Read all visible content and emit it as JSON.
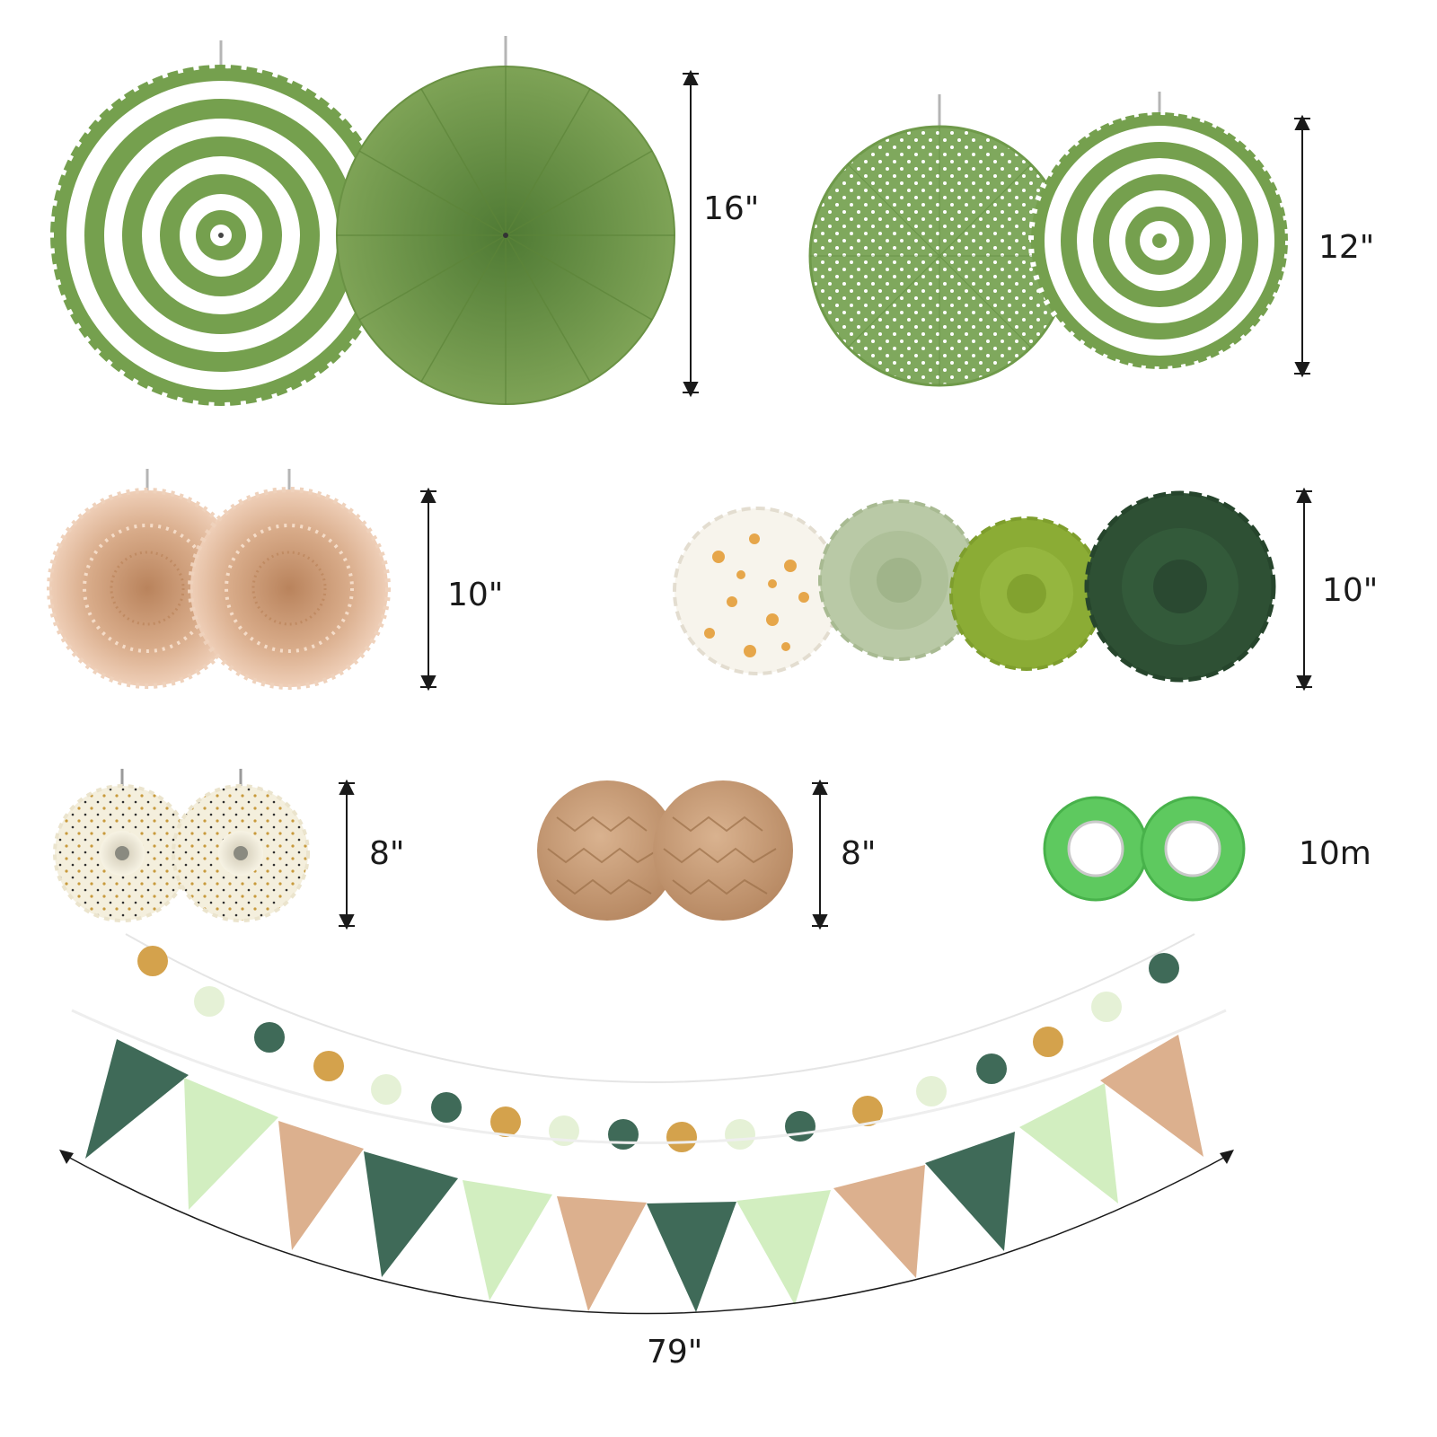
{
  "colors": {
    "sage_green": "#6f9a4a",
    "medium_green": "#75984a",
    "light_green": "#84b36a",
    "kraft": "#dcb08e",
    "kraft_dark": "#a98059",
    "cream": "#f3eedc",
    "gold": "#d4a24c",
    "mint": "#d2eec0",
    "mint_pale": "#e5f1d6",
    "forest": "#3f6a58",
    "dark_green": "#2e5034",
    "tape_green": "#5ec95f",
    "pom_sage": "#b9c9a6",
    "pom_lime": "#8bac35"
  },
  "sizes": {
    "large_fans": "16\"",
    "medium_fans": "12\"",
    "kraft_fans": "10\"",
    "pom_poms": "10\"",
    "small_fans": "8\"",
    "honeycomb_balls": "8\"",
    "tape": "10m",
    "garland": "79\""
  }
}
